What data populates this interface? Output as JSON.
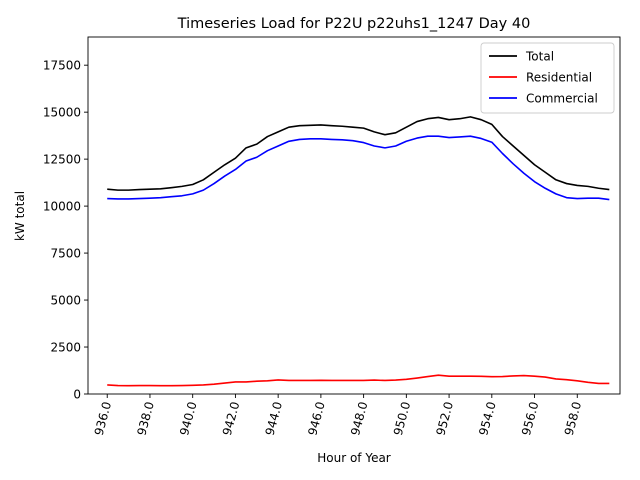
{
  "chart_data": {
    "type": "line",
    "title": "Timeseries Load for P22U p22uhs1_1247  Day 40",
    "xlabel": "Hour of Year",
    "ylabel": "kW total",
    "xlim": [
      935.1,
      960.0
    ],
    "ylim": [
      0,
      19000
    ],
    "xticks": [
      936.0,
      938.0,
      940.0,
      942.0,
      944.0,
      946.0,
      948.0,
      950.0,
      952.0,
      954.0,
      956.0,
      958.0
    ],
    "xtick_labels": [
      "936.0",
      "938.0",
      "940.0",
      "942.0",
      "944.0",
      "946.0",
      "948.0",
      "950.0",
      "952.0",
      "954.0",
      "956.0",
      "958.0"
    ],
    "yticks": [
      0,
      2500,
      5000,
      7500,
      10000,
      12500,
      15000,
      17500
    ],
    "ytick_labels": [
      "0",
      "2500",
      "5000",
      "7500",
      "10000",
      "12500",
      "15000",
      "17500"
    ],
    "legend_position": "top-right",
    "x": [
      936.0,
      936.5,
      937.0,
      937.5,
      938.0,
      938.5,
      939.0,
      939.5,
      940.0,
      940.5,
      941.0,
      941.5,
      942.0,
      942.5,
      943.0,
      943.5,
      944.0,
      944.5,
      945.0,
      945.5,
      946.0,
      946.5,
      947.0,
      947.5,
      948.0,
      948.5,
      949.0,
      949.5,
      950.0,
      950.5,
      951.0,
      951.5,
      952.0,
      952.5,
      953.0,
      953.5,
      954.0,
      954.5,
      955.0,
      955.5,
      956.0,
      956.5,
      957.0,
      957.5,
      958.0,
      958.5,
      959.0,
      959.5
    ],
    "series": [
      {
        "name": "Total",
        "color": "#000000",
        "values": [
          10900,
          10850,
          10850,
          10880,
          10900,
          10920,
          10980,
          11050,
          11150,
          11400,
          11800,
          12200,
          12550,
          13100,
          13300,
          13700,
          13950,
          14200,
          14280,
          14300,
          14320,
          14280,
          14250,
          14200,
          14150,
          13950,
          13800,
          13900,
          14200,
          14500,
          14650,
          14720,
          14600,
          14650,
          14750,
          14600,
          14350,
          13700,
          13200,
          12700,
          12200,
          11800,
          11400,
          11200,
          11100,
          11050,
          10950,
          10880
        ]
      },
      {
        "name": "Residential",
        "color": "#ff0000",
        "values": [
          480,
          450,
          440,
          450,
          450,
          440,
          440,
          450,
          460,
          480,
          520,
          580,
          640,
          640,
          680,
          700,
          750,
          720,
          720,
          720,
          730,
          720,
          720,
          720,
          720,
          740,
          720,
          740,
          780,
          850,
          930,
          1000,
          950,
          950,
          950,
          940,
          920,
          930,
          960,
          980,
          950,
          900,
          800,
          760,
          700,
          620,
          560,
          560
        ]
      },
      {
        "name": "Commercial",
        "color": "#0000ff",
        "values": [
          10400,
          10380,
          10380,
          10400,
          10420,
          10450,
          10500,
          10550,
          10650,
          10850,
          11200,
          11600,
          11950,
          12400,
          12600,
          12950,
          13200,
          13450,
          13550,
          13580,
          13580,
          13550,
          13530,
          13480,
          13380,
          13200,
          13100,
          13200,
          13450,
          13620,
          13720,
          13720,
          13650,
          13680,
          13720,
          13600,
          13400,
          12800,
          12250,
          11750,
          11300,
          10950,
          10650,
          10450,
          10400,
          10420,
          10420,
          10350
        ]
      }
    ]
  }
}
